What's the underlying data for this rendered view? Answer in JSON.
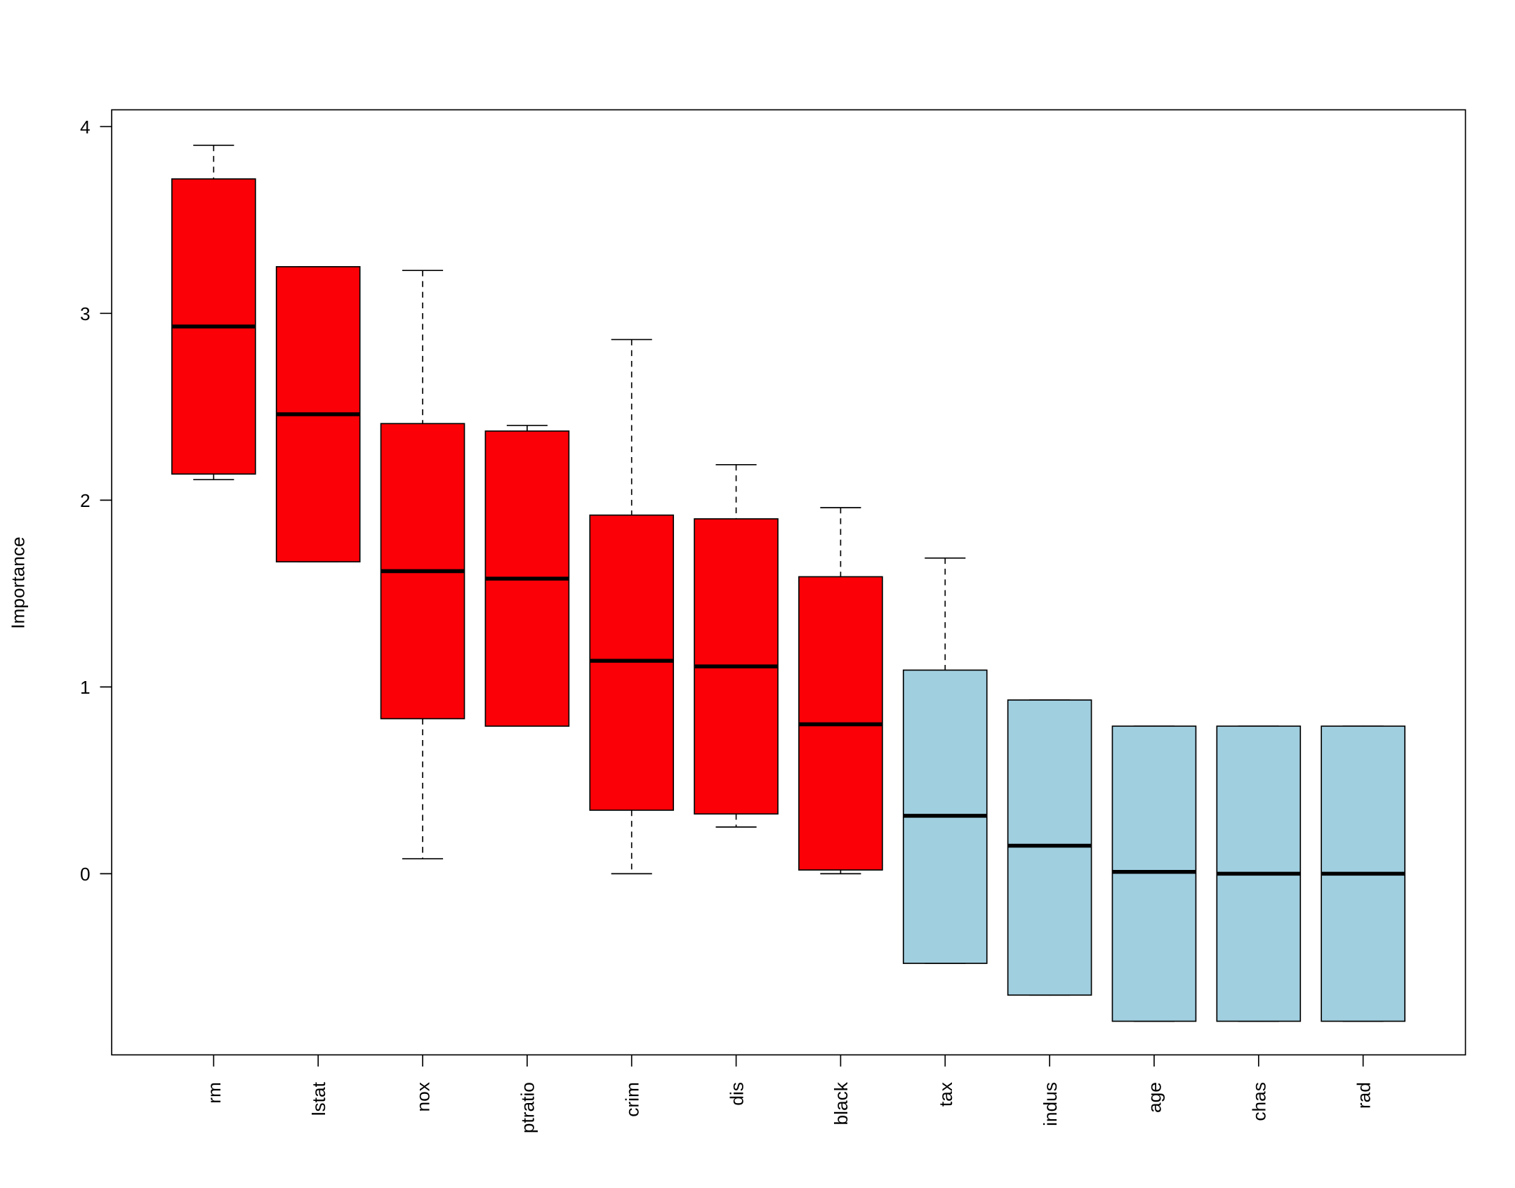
{
  "chart_data": {
    "type": "boxplot",
    "title": "",
    "xlabel": "",
    "ylabel": "Importance",
    "ylim": [
      -0.97,
      4.09
    ],
    "yticks": [
      0,
      1,
      2,
      3,
      4
    ],
    "grid": false,
    "colors": {
      "confirmed": "#FB0007",
      "rejected": "#A0CFE0"
    },
    "categories": [
      "rm",
      "lstat",
      "nox",
      "ptratio",
      "crim",
      "dis",
      "black",
      "tax",
      "indus",
      "age",
      "chas",
      "rad"
    ],
    "boxes": [
      {
        "name": "rm",
        "min": 2.11,
        "q1": 2.14,
        "median": 2.93,
        "q3": 3.72,
        "max": 3.9,
        "group": "confirmed"
      },
      {
        "name": "lstat",
        "min": 1.67,
        "q1": 1.67,
        "median": 2.46,
        "q3": 3.25,
        "max": 3.25,
        "group": "confirmed"
      },
      {
        "name": "nox",
        "min": 0.08,
        "q1": 0.83,
        "median": 1.62,
        "q3": 2.41,
        "max": 3.23,
        "group": "confirmed"
      },
      {
        "name": "ptratio",
        "min": 0.79,
        "q1": 0.79,
        "median": 1.58,
        "q3": 2.37,
        "max": 2.4,
        "group": "confirmed"
      },
      {
        "name": "crim",
        "min": 0.0,
        "q1": 0.34,
        "median": 1.14,
        "q3": 1.92,
        "max": 2.86,
        "group": "confirmed"
      },
      {
        "name": "dis",
        "min": 0.25,
        "q1": 0.32,
        "median": 1.11,
        "q3": 1.9,
        "max": 2.19,
        "group": "confirmed"
      },
      {
        "name": "black",
        "min": 0.0,
        "q1": 0.02,
        "median": 0.8,
        "q3": 1.59,
        "max": 1.96,
        "group": "confirmed"
      },
      {
        "name": "tax",
        "min": -0.48,
        "q1": -0.48,
        "median": 0.31,
        "q3": 1.09,
        "max": 1.69,
        "group": "rejected"
      },
      {
        "name": "indus",
        "min": -0.65,
        "q1": -0.65,
        "median": 0.15,
        "q3": 0.93,
        "max": 0.93,
        "group": "rejected"
      },
      {
        "name": "age",
        "min": -0.79,
        "q1": -0.79,
        "median": 0.01,
        "q3": 0.79,
        "max": 0.79,
        "group": "rejected"
      },
      {
        "name": "chas",
        "min": -0.79,
        "q1": -0.79,
        "median": 0.0,
        "q3": 0.79,
        "max": 0.79,
        "group": "rejected"
      },
      {
        "name": "rad",
        "min": -0.79,
        "q1": -0.79,
        "median": 0.0,
        "q3": 0.79,
        "max": 0.79,
        "group": "rejected"
      }
    ]
  }
}
